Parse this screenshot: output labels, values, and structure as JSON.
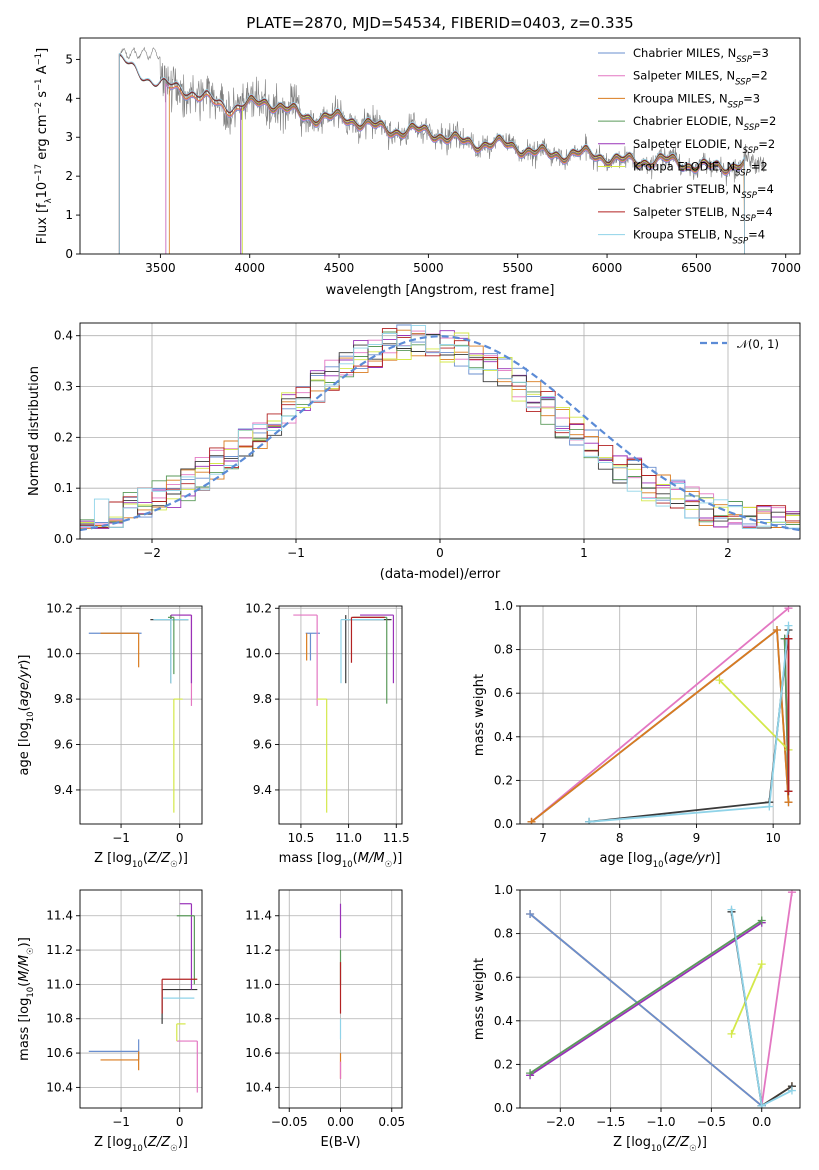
{
  "chart_data": [
    {
      "id": "spectrum",
      "type": "line",
      "title": "PLATE=2870, MJD=54534, FIBERID=0403, z=0.335",
      "xlabel": "wavelength [Angstrom, rest frame]",
      "ylabel": "Flux [fλ10⁻¹⁷ erg cm⁻² s⁻¹ A⁻¹]",
      "xlim": [
        3050,
        7080
      ],
      "ylim": [
        0,
        5.55
      ],
      "xticks": [
        3500,
        4000,
        4500,
        5000,
        5500,
        6000,
        6500,
        7000
      ],
      "yticks": [
        0,
        1,
        2,
        3,
        4,
        5
      ],
      "grid": false,
      "legend_position": "top-right",
      "data_color": "#7f7f7f",
      "data_range": [
        3270,
        6880
      ],
      "model_continuum": {
        "x": [
          3500,
          3700,
          3900,
          4100,
          4300,
          4500,
          4700,
          4900,
          5100,
          5300,
          5500,
          5700,
          5900,
          6100,
          6300,
          6500,
          6700
        ],
        "y": [
          4.35,
          4.05,
          3.8,
          3.85,
          3.6,
          3.45,
          3.3,
          3.15,
          3.0,
          2.85,
          2.7,
          2.6,
          2.5,
          2.45,
          2.35,
          2.3,
          2.25
        ]
      },
      "series": [
        {
          "name": "Chabrier MILES, N_SSP=3",
          "label_main": "Chabrier MILES, N",
          "label_sub": "SSP",
          "label_tail": "=3",
          "color": "#6a8fcf",
          "start": 3530,
          "end": 6770
        },
        {
          "name": "Salpeter MILES, N_SSP=2",
          "label_main": "Salpeter MILES, N",
          "label_sub": "SSP",
          "label_tail": "=2",
          "color": "#e377c2",
          "start": 3530,
          "end": 6770
        },
        {
          "name": "Kroupa MILES, N_SSP=3",
          "label_main": "Kroupa MILES, N",
          "label_sub": "SSP",
          "label_tail": "=3",
          "color": "#d97b1f",
          "start": 3550,
          "end": 6770
        },
        {
          "name": "Chabrier ELODIE, N_SSP=2",
          "label_main": "Chabrier ELODIE, N",
          "label_sub": "SSP",
          "label_tail": "=2",
          "color": "#5a9a5a",
          "start": 3950,
          "end": 6770
        },
        {
          "name": "Salpeter ELODIE, N_SSP=2",
          "label_main": "Salpeter ELODIE, N",
          "label_sub": "SSP",
          "label_tail": "=2",
          "color": "#9932b8",
          "start": 3950,
          "end": 6770
        },
        {
          "name": "Kroupa ELODIE, N_SSP=2",
          "label_main": "Kroupa ELODIE, N",
          "label_sub": "SSP",
          "label_tail": "=2",
          "color": "#d4e84a",
          "start": 3960,
          "end": 6770
        },
        {
          "name": "Chabrier STELIB, N_SSP=4",
          "label_main": "Chabrier STELIB, N",
          "label_sub": "SSP",
          "label_tail": "=4",
          "color": "#3a3a3a",
          "start": 3270,
          "end": 6770
        },
        {
          "name": "Salpeter STELIB, N_SSP=4",
          "label_main": "Salpeter STELIB, N",
          "label_sub": "SSP",
          "label_tail": "=4",
          "color": "#b22222",
          "start": 3270,
          "end": 6770
        },
        {
          "name": "Kroupa STELIB, N_SSP=4",
          "label_main": "Kroupa STELIB, N",
          "label_sub": "SSP",
          "label_tail": "=4",
          "color": "#8fd3e8",
          "start": 3270,
          "end": 6770
        }
      ]
    },
    {
      "id": "residuals",
      "type": "line",
      "xlabel": "(data-model)/error",
      "ylabel": "Normed distribution",
      "xlim": [
        -2.5,
        2.5
      ],
      "ylim": [
        0,
        0.425
      ],
      "xticks": [
        -2,
        -1,
        0,
        1,
        2
      ],
      "yticks": [
        0.0,
        0.1,
        0.2,
        0.3,
        0.4
      ],
      "grid": true,
      "legend_position": "top-right",
      "reference": {
        "name": "N(0,1)",
        "label": "𝒩(0, 1)",
        "color": "#5b8bd6",
        "style": "dashed"
      },
      "histogram_bin_width": 0.1
    },
    {
      "id": "age_vs_Z",
      "type": "scatter",
      "xlabel": "Z [log10(Z/Z☉)]",
      "ylabel": "age [log10(age/yr)]",
      "xlim": [
        -1.7,
        0.38
      ],
      "ylim": [
        9.25,
        10.21
      ],
      "xticks": [
        -1,
        0
      ],
      "yticks": [
        9.4,
        9.6,
        9.8,
        10.0,
        10.2
      ],
      "grid": true,
      "points": [
        {
          "x": -0.7,
          "y": 10.09,
          "xerr": [
            0.85,
            0.05
          ],
          "yerr": [
            0.0,
            0.0
          ],
          "color": "#6a8fcf"
        },
        {
          "x": -0.7,
          "y": 10.09,
          "xerr": [
            0.65,
            0.0
          ],
          "yerr": [
            0.15,
            0.0
          ],
          "color": "#d97b1f"
        },
        {
          "x": 0.2,
          "y": 10.17,
          "xerr": [
            0.2,
            0.0
          ],
          "yerr": [
            0.4,
            0.0
          ],
          "color": "#e377c2"
        },
        {
          "x": -0.15,
          "y": 10.15,
          "xerr": [
            0.35,
            0.3
          ],
          "yerr": [
            0.28,
            0.02
          ],
          "color": "#3a3a3a"
        },
        {
          "x": -0.15,
          "y": 10.15,
          "xerr": [
            0.3,
            0.3
          ],
          "yerr": [
            0.28,
            0.0
          ],
          "color": "#8fd3e8"
        },
        {
          "x": 0.2,
          "y": 10.17,
          "xerr": [
            0.35,
            0.0
          ],
          "yerr": [
            0.3,
            0.0
          ],
          "color": "#9932b8"
        },
        {
          "x": -0.1,
          "y": 9.8,
          "xerr": [
            0.0,
            0.15
          ],
          "yerr": [
            0.5,
            0.0
          ],
          "color": "#d4e84a"
        },
        {
          "x": -0.1,
          "y": 10.16,
          "xerr": [
            0.1,
            0.0
          ],
          "yerr": [
            0.25,
            0.0
          ],
          "color": "#5a9a5a"
        }
      ]
    },
    {
      "id": "age_vs_mass",
      "type": "scatter",
      "xlabel": "mass [log10(M/M☉)]",
      "ylabel": "",
      "xlim": [
        10.27,
        11.56
      ],
      "ylim": [
        9.25,
        10.21
      ],
      "xticks": [
        10.5,
        11.0,
        11.5
      ],
      "yticks": [
        9.4,
        9.6,
        9.8,
        10.0,
        10.2
      ],
      "grid": true,
      "points": [
        {
          "x": 10.6,
          "y": 10.09,
          "xerr": [
            0.05,
            0.1
          ],
          "yerr": [
            0.12,
            0.0
          ],
          "color": "#6a8fcf"
        },
        {
          "x": 10.56,
          "y": 10.09,
          "xerr": [
            0.0,
            0.0
          ],
          "yerr": [
            0.12,
            0.0
          ],
          "color": "#d97b1f"
        },
        {
          "x": 10.67,
          "y": 10.17,
          "xerr": [
            0.25,
            0.0
          ],
          "yerr": [
            0.4,
            0.0
          ],
          "color": "#e377c2"
        },
        {
          "x": 10.97,
          "y": 10.15,
          "xerr": [
            0.0,
            0.48
          ],
          "yerr": [
            0.28,
            0.02
          ],
          "color": "#3a3a3a"
        },
        {
          "x": 10.92,
          "y": 10.15,
          "xerr": [
            0.0,
            0.45
          ],
          "yerr": [
            0.28,
            0.0
          ],
          "color": "#8fd3e8"
        },
        {
          "x": 11.47,
          "y": 10.17,
          "xerr": [
            0.35,
            0.0
          ],
          "yerr": [
            0.3,
            0.0
          ],
          "color": "#9932b8"
        },
        {
          "x": 10.77,
          "y": 9.8,
          "xerr": [
            0.1,
            0.0
          ],
          "yerr": [
            0.5,
            0.0
          ],
          "color": "#d4e84a"
        },
        {
          "x": 11.4,
          "y": 10.16,
          "xerr": [
            0.35,
            0.0
          ],
          "yerr": [
            0.38,
            0.0
          ],
          "color": "#5a9a5a"
        },
        {
          "x": 11.03,
          "y": 10.16,
          "xerr": [
            0.0,
            0.35
          ],
          "yerr": [
            0.2,
            0.0
          ],
          "color": "#b22222"
        }
      ]
    },
    {
      "id": "weight_vs_age",
      "type": "line",
      "xlabel": "age [log10(age/yr)]",
      "ylabel": "mass weight",
      "xlim": [
        6.7,
        10.35
      ],
      "ylim": [
        0,
        1.0
      ],
      "xticks": [
        7,
        8,
        9,
        10
      ],
      "yticks": [
        0.0,
        0.2,
        0.4,
        0.6,
        0.8,
        1.0
      ],
      "grid": true,
      "series": [
        {
          "color": "#e377c2",
          "x": [
            6.85,
            10.2
          ],
          "y": [
            0.01,
            0.99
          ]
        },
        {
          "color": "#6a8fcf",
          "x": [
            6.85,
            10.05,
            10.2
          ],
          "y": [
            0.01,
            0.89,
            0.1
          ]
        },
        {
          "color": "#d97b1f",
          "x": [
            6.85,
            10.05,
            10.2
          ],
          "y": [
            0.01,
            0.89,
            0.1
          ]
        },
        {
          "color": "#d4e84a",
          "x": [
            9.3,
            10.2
          ],
          "y": [
            0.66,
            0.34
          ]
        },
        {
          "color": "#9932b8",
          "x": [
            10.15,
            10.2,
            10.2
          ],
          "y": [
            0.85,
            0.15,
            0.85
          ]
        },
        {
          "color": "#5a9a5a",
          "x": [
            10.15,
            10.2
          ],
          "y": [
            0.85,
            0.15
          ]
        },
        {
          "color": "#3a3a3a",
          "x": [
            7.6,
            9.95,
            10.2
          ],
          "y": [
            0.01,
            0.1,
            0.89
          ]
        },
        {
          "color": "#8fd3e8",
          "x": [
            7.6,
            9.95,
            10.2
          ],
          "y": [
            0.01,
            0.08,
            0.91
          ]
        },
        {
          "color": "#b22222",
          "x": [
            10.2,
            10.2
          ],
          "y": [
            0.15,
            0.85
          ]
        }
      ]
    },
    {
      "id": "mass_vs_Z",
      "type": "scatter",
      "xlabel": "Z [log10(Z/Z☉)]",
      "ylabel": "mass [log10(M/M☉)]",
      "xlim": [
        -1.7,
        0.38
      ],
      "ylim": [
        10.28,
        11.55
      ],
      "xticks": [
        -1,
        0
      ],
      "yticks": [
        10.4,
        10.6,
        10.8,
        11.0,
        11.2,
        11.4
      ],
      "grid": true,
      "points": [
        {
          "x": -0.7,
          "y": 10.61,
          "xerr": [
            0.85,
            0.0
          ],
          "yerr": [
            0.05,
            0.07
          ],
          "color": "#6a8fcf"
        },
        {
          "x": -0.7,
          "y": 10.56,
          "xerr": [
            0.65,
            0.0
          ],
          "yerr": [
            0.06,
            0.05
          ],
          "color": "#d97b1f"
        },
        {
          "x": 0.3,
          "y": 10.67,
          "xerr": [
            0.35,
            0.0
          ],
          "yerr": [
            0.3,
            0.0
          ],
          "color": "#e377c2"
        },
        {
          "x": -0.3,
          "y": 10.97,
          "xerr": [
            0.0,
            0.6
          ],
          "yerr": [
            0.2,
            0.0
          ],
          "color": "#3a3a3a"
        },
        {
          "x": -0.3,
          "y": 10.92,
          "xerr": [
            0.0,
            0.55
          ],
          "yerr": [
            0.0,
            0.0
          ],
          "color": "#8fd3e8"
        },
        {
          "x": 0.2,
          "y": 11.47,
          "xerr": [
            0.2,
            0.0
          ],
          "yerr": [
            0.5,
            0.0
          ],
          "color": "#9932b8"
        },
        {
          "x": -0.05,
          "y": 10.77,
          "xerr": [
            0.0,
            0.15
          ],
          "yerr": [
            0.1,
            0.0
          ],
          "color": "#d4e84a"
        },
        {
          "x": 0.25,
          "y": 11.4,
          "xerr": [
            0.3,
            0.0
          ],
          "yerr": [
            0.4,
            0.0
          ],
          "color": "#5a9a5a"
        },
        {
          "x": -0.3,
          "y": 11.03,
          "xerr": [
            0.0,
            0.6
          ],
          "yerr": [
            0.2,
            0.0
          ],
          "color": "#b22222"
        }
      ]
    },
    {
      "id": "mass_vs_ebv",
      "type": "scatter",
      "xlabel": "E(B-V)",
      "ylabel": "",
      "xlim": [
        -0.06,
        0.06
      ],
      "ylim": [
        10.28,
        11.55
      ],
      "xticks": [
        -0.05,
        0.0,
        0.05
      ],
      "yticks": [
        10.4,
        10.6,
        10.8,
        11.0,
        11.2,
        11.4
      ],
      "grid": true,
      "points": [
        {
          "x": 0.0,
          "y": 11.47,
          "yerr": [
            0.2,
            0.0
          ],
          "color": "#9932b8"
        },
        {
          "x": 0.0,
          "y": 11.2,
          "yerr": [
            0.2,
            0.0
          ],
          "color": "#5a9a5a"
        },
        {
          "x": 0.0,
          "y": 10.98,
          "yerr": [
            0.15,
            0.15
          ],
          "color": "#b22222"
        },
        {
          "x": 0.0,
          "y": 10.8,
          "yerr": [
            0.12,
            0.0
          ],
          "color": "#8fd3e8"
        },
        {
          "x": 0.0,
          "y": 10.6,
          "yerr": [
            0.15,
            0.0
          ],
          "color": "#d97b1f"
        },
        {
          "x": 0.0,
          "y": 10.55,
          "yerr": [
            0.1,
            0.0
          ],
          "color": "#e377c2"
        }
      ]
    },
    {
      "id": "weight_vs_Z",
      "type": "line",
      "xlabel": "Z [log10(Z/Z☉)]",
      "ylabel": "mass weight",
      "xlim": [
        -2.4,
        0.38
      ],
      "ylim": [
        0,
        1.0
      ],
      "xticks": [
        -2.0,
        -1.5,
        -1.0,
        -0.5,
        0.0
      ],
      "yticks": [
        0.0,
        0.2,
        0.4,
        0.6,
        0.8,
        1.0
      ],
      "grid": true,
      "series": [
        {
          "color": "#d97b1f",
          "x": [
            -2.3,
            0.0,
            0.3
          ],
          "y": [
            0.89,
            0.01,
            0.1
          ]
        },
        {
          "color": "#6a8fcf",
          "x": [
            -2.3,
            0.0
          ],
          "y": [
            0.89,
            0.01
          ]
        },
        {
          "color": "#9932b8",
          "x": [
            -2.3,
            0.0
          ],
          "y": [
            0.15,
            0.85
          ]
        },
        {
          "color": "#5a9a5a",
          "x": [
            -2.3,
            0.0
          ],
          "y": [
            0.16,
            0.86
          ]
        },
        {
          "color": "#e377c2",
          "x": [
            0.0,
            0.3
          ],
          "y": [
            0.01,
            0.99
          ]
        },
        {
          "color": "#d4e84a",
          "x": [
            -0.3,
            0.0
          ],
          "y": [
            0.34,
            0.66
          ]
        },
        {
          "color": "#3a3a3a",
          "x": [
            -0.3,
            0.0,
            0.3
          ],
          "y": [
            0.9,
            0.01,
            0.1
          ]
        },
        {
          "color": "#8fd3e8",
          "x": [
            -0.3,
            0.0,
            0.3
          ],
          "y": [
            0.91,
            0.01,
            0.08
          ]
        }
      ]
    }
  ]
}
